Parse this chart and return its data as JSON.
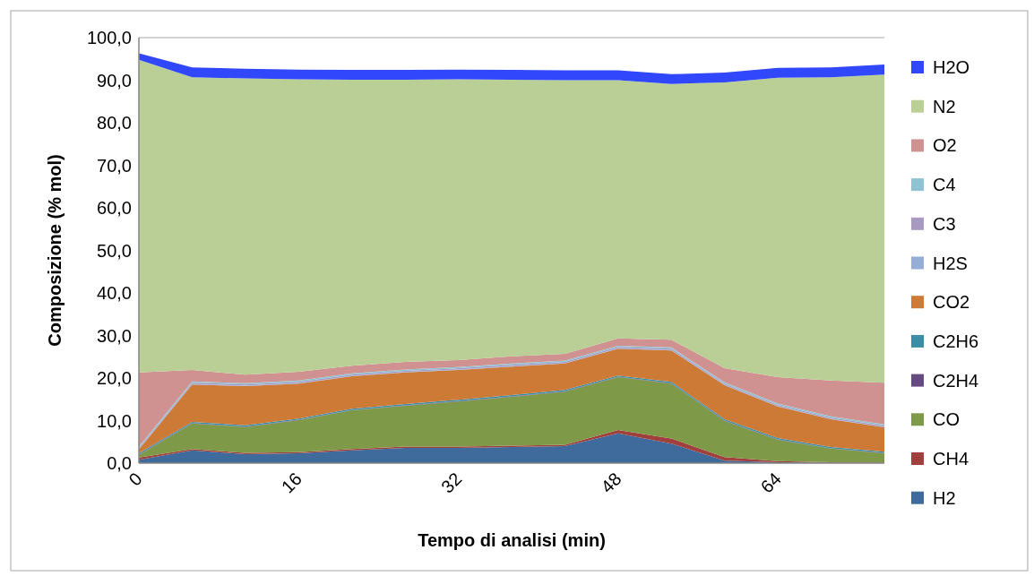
{
  "chart_data": {
    "type": "area",
    "stacked": true,
    "xlabel": "Tempo di analisi (min)",
    "ylabel": "Composizione (% mol)",
    "categories": [
      "0",
      null,
      null,
      "16",
      null,
      null,
      "32",
      null,
      null,
      "48",
      null,
      null,
      "64",
      null,
      null
    ],
    "ylim": [
      0,
      100
    ],
    "yticks": [
      {
        "value": 0,
        "label": "0,0"
      },
      {
        "value": 10,
        "label": "10,0"
      },
      {
        "value": 20,
        "label": "20,0"
      },
      {
        "value": 30,
        "label": "30,0"
      },
      {
        "value": 40,
        "label": "40,0"
      },
      {
        "value": 50,
        "label": "50,0"
      },
      {
        "value": 60,
        "label": "60,0"
      },
      {
        "value": 70,
        "label": "70,0"
      },
      {
        "value": 80,
        "label": "80,0"
      },
      {
        "value": 90,
        "label": "90,0"
      },
      {
        "value": 100,
        "label": "100,0"
      }
    ],
    "legend": "right",
    "series": [
      {
        "name": "H2",
        "color": "#3f6a9c",
        "values": [
          0.8,
          3.0,
          2.1,
          2.3,
          3.0,
          3.6,
          3.6,
          3.8,
          4.0,
          7.0,
          4.6,
          0.6,
          0.2,
          0.1,
          0.1
        ]
      },
      {
        "name": "CH4",
        "color": "#a0403c",
        "values": [
          0.5,
          0.3,
          0.3,
          0.3,
          0.3,
          0.3,
          0.3,
          0.3,
          0.3,
          0.8,
          1.2,
          0.8,
          0.3,
          0.1,
          0.1
        ]
      },
      {
        "name": "CO",
        "color": "#7e9a48",
        "values": [
          0.6,
          6.0,
          6.1,
          7.5,
          9.1,
          9.6,
          10.6,
          11.5,
          12.5,
          12.4,
          12.9,
          8.5,
          5.0,
          3.2,
          2.1
        ]
      },
      {
        "name": "C2H4",
        "color": "#664a82",
        "values": [
          0.1,
          0.1,
          0.1,
          0.1,
          0.1,
          0.1,
          0.1,
          0.1,
          0.1,
          0.1,
          0.1,
          0.1,
          0.1,
          0.1,
          0.1
        ]
      },
      {
        "name": "C2H6",
        "color": "#3b8ea5",
        "values": [
          0.3,
          0.3,
          0.3,
          0.3,
          0.3,
          0.3,
          0.3,
          0.3,
          0.3,
          0.3,
          0.3,
          0.3,
          0.3,
          0.3,
          0.3
        ]
      },
      {
        "name": "CO2",
        "color": "#cc7a35",
        "values": [
          0.9,
          8.8,
          9.2,
          8.2,
          7.6,
          7.4,
          7.0,
          6.7,
          6.2,
          6.3,
          7.4,
          8.0,
          7.4,
          6.5,
          5.7
        ]
      },
      {
        "name": "H2S",
        "color": "#94aed6",
        "values": [
          0.1,
          0.1,
          0.1,
          0.1,
          0.1,
          0.1,
          0.1,
          0.1,
          0.1,
          0.1,
          0.1,
          0.1,
          0.1,
          0.1,
          0.1
        ]
      },
      {
        "name": "C3",
        "color": "#a899c2",
        "values": [
          0.3,
          0.3,
          0.3,
          0.3,
          0.3,
          0.3,
          0.3,
          0.3,
          0.3,
          0.3,
          0.3,
          0.3,
          0.3,
          0.3,
          0.3
        ]
      },
      {
        "name": "C4",
        "color": "#8fc2d3",
        "values": [
          0.3,
          0.3,
          0.3,
          0.3,
          0.3,
          0.3,
          0.3,
          0.3,
          0.3,
          0.3,
          0.3,
          0.3,
          0.3,
          0.3,
          0.3
        ]
      },
      {
        "name": "O2",
        "color": "#d09290",
        "values": [
          17.4,
          2.7,
          2.0,
          2.1,
          1.8,
          1.8,
          1.6,
          1.7,
          1.6,
          1.7,
          1.8,
          3.3,
          6.2,
          8.4,
          9.8
        ]
      },
      {
        "name": "N2",
        "color": "#b9cf96",
        "values": [
          73.5,
          68.8,
          69.6,
          68.7,
          67.2,
          66.3,
          66.0,
          65.0,
          64.3,
          60.7,
          60.1,
          67.2,
          70.4,
          71.3,
          72.4
        ]
      },
      {
        "name": "H2O",
        "color": "#3047fb",
        "values": [
          1.5,
          2.3,
          2.3,
          2.3,
          2.3,
          2.3,
          2.3,
          2.3,
          2.3,
          2.3,
          2.3,
          2.3,
          2.3,
          2.3,
          2.4
        ]
      }
    ]
  }
}
